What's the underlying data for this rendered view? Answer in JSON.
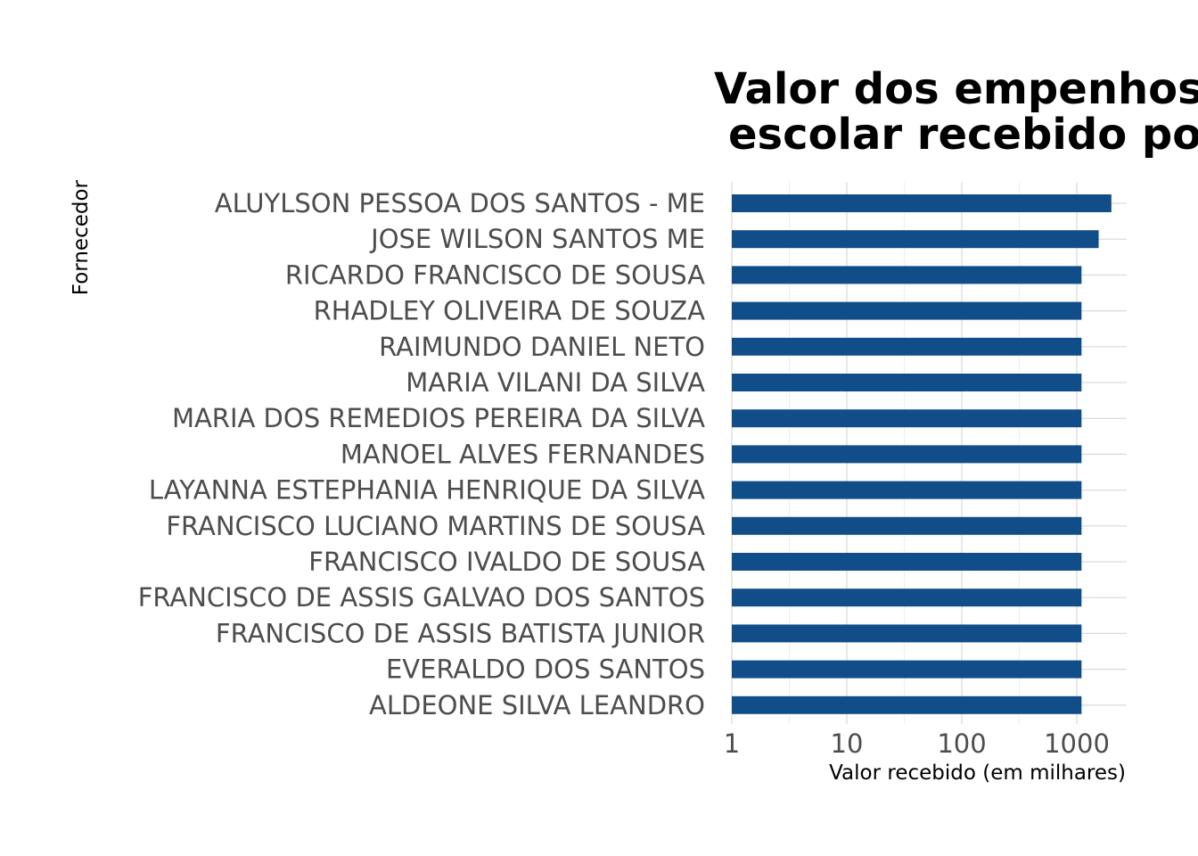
{
  "chart_data": {
    "type": "bar",
    "orientation": "horizontal",
    "title_lines": [
      "Valor dos empenhos",
      "escolar recebido po"
    ],
    "xlabel": "Valor recebido (em milhares)",
    "ylabel": "Fornecedor",
    "x_scale": "log10",
    "xlim": [
      1,
      2600
    ],
    "x_ticks": [
      1,
      10,
      100,
      1000
    ],
    "x_tick_labels": [
      "1",
      "10",
      "100",
      "1000"
    ],
    "grid": true,
    "bar_color": "#114e89",
    "categories": [
      "ALUYLSON PESSOA DOS SANTOS - ME",
      "JOSE WILSON SANTOS ME",
      "RICARDO FRANCISCO DE SOUSA",
      "RHADLEY OLIVEIRA DE SOUZA",
      "RAIMUNDO DANIEL NETO",
      "MARIA VILANI DA SILVA",
      "MARIA DOS REMEDIOS PEREIRA DA SILVA",
      "MANOEL ALVES FERNANDES",
      "LAYANNA ESTEPHANIA HENRIQUE DA SILVA",
      "FRANCISCO LUCIANO MARTINS DE SOUSA",
      "FRANCISCO IVALDO DE SOUSA",
      "FRANCISCO DE ASSIS GALVAO DOS SANTOS",
      "FRANCISCO DE ASSIS BATISTA JUNIOR",
      "EVERALDO DOS SANTOS",
      "ALDEONE SILVA LEANDRO"
    ],
    "values": [
      2000,
      1550,
      1100,
      1100,
      1100,
      1100,
      1100,
      1100,
      1100,
      1100,
      1100,
      1100,
      1100,
      1100,
      1100
    ]
  }
}
